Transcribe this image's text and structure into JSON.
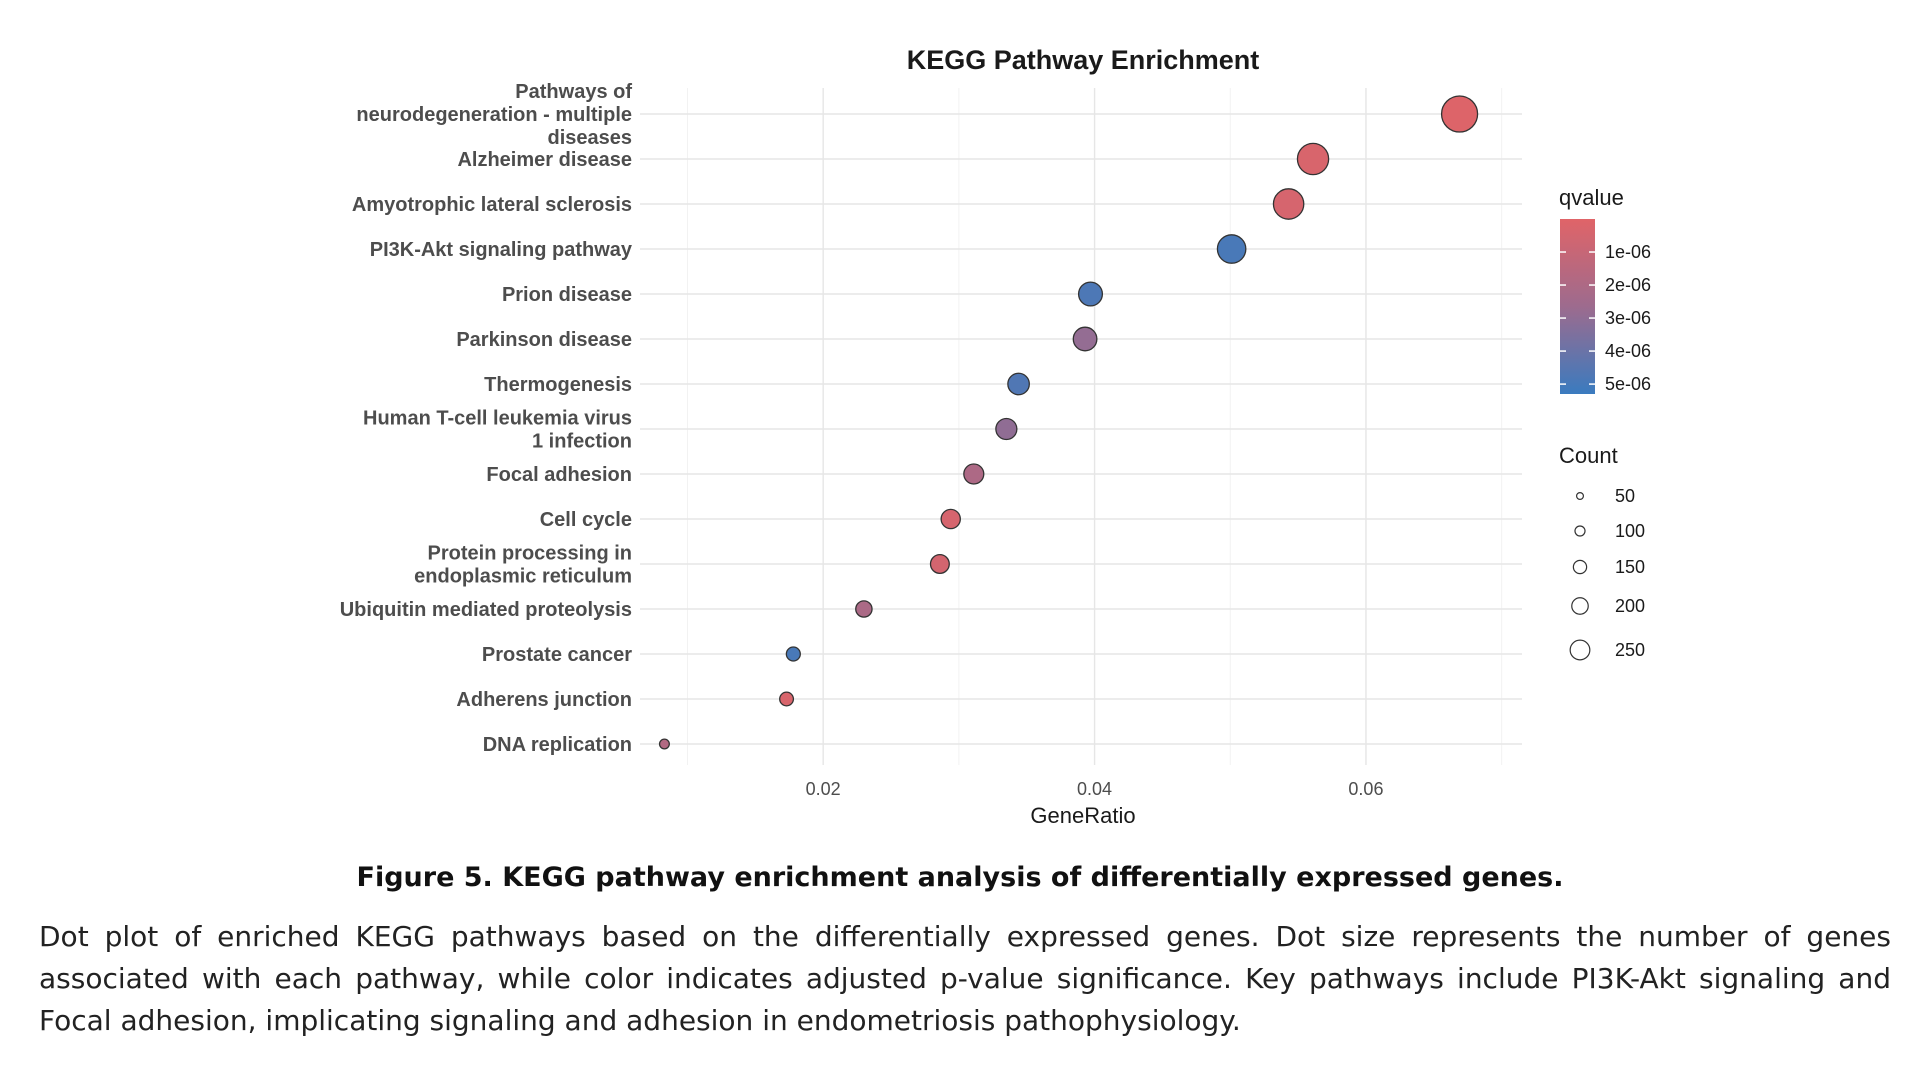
{
  "chart_data": {
    "type": "scatter",
    "title": "KEGG Pathway Enrichment",
    "xlabel": "GeneRatio",
    "xlim": [
      0.0065,
      0.0715
    ],
    "xticks": [
      0.02,
      0.04,
      0.06
    ],
    "xtick_labels": [
      "0.02",
      "0.04",
      "0.06"
    ],
    "grid": true,
    "legend_placement": "right",
    "categories": [
      "Pathways of neurodegeneration - multiple diseases",
      "Alzheimer disease",
      "Amyotrophic lateral sclerosis",
      "PI3K-Akt signaling pathway",
      "Prion disease",
      "Parkinson disease",
      "Thermogenesis",
      "Human T-cell leukemia virus 1 infection",
      "Focal adhesion",
      "Cell cycle",
      "Protein processing in endoplasmic reticulum",
      "Ubiquitin mediated proteolysis",
      "Prostate cancer",
      "Adherens junction",
      "DNA replication"
    ],
    "category_lines": [
      [
        "Pathways of",
        "neurodegeneration - multiple",
        "diseases"
      ],
      [
        "Alzheimer disease"
      ],
      [
        "Amyotrophic lateral sclerosis"
      ],
      [
        "PI3K-Akt signaling pathway"
      ],
      [
        "Prion disease"
      ],
      [
        "Parkinson disease"
      ],
      [
        "Thermogenesis"
      ],
      [
        "Human T-cell leukemia virus",
        "1 infection"
      ],
      [
        "Focal adhesion"
      ],
      [
        "Cell cycle"
      ],
      [
        "Protein processing in",
        "endoplasmic reticulum"
      ],
      [
        "Ubiquitin mediated proteolysis"
      ],
      [
        "Prostate cancer"
      ],
      [
        "Adherens junction"
      ],
      [
        "DNA replication"
      ]
    ],
    "gene_ratio": [
      0.0669,
      0.0561,
      0.0543,
      0.0501,
      0.0397,
      0.0393,
      0.0344,
      0.0335,
      0.0311,
      0.0294,
      0.0286,
      0.023,
      0.0178,
      0.0173,
      0.0083
    ],
    "count": [
      280,
      235,
      227,
      209,
      166,
      164,
      144,
      140,
      130,
      123,
      119,
      96,
      74,
      72,
      35
    ],
    "qvalue": [
      1e-07,
      3e-07,
      4e-07,
      4.9e-06,
      4.8e-06,
      2.9e-06,
      4.7e-06,
      3e-06,
      2e-06,
      4e-07,
      5e-07,
      2.1e-06,
      4.9e-06,
      3e-07,
      1.8e-06
    ],
    "legend_color": {
      "title": "qvalue",
      "min": 0,
      "max": 5.3e-06,
      "ticks": [
        1e-06,
        2e-06,
        3e-06,
        4e-06,
        5e-06
      ],
      "tick_labels": [
        "1e-06",
        "2e-06",
        "3e-06",
        "4e-06",
        "5e-06"
      ],
      "low_color": "#e06468",
      "mid_color": "#9d6b8e",
      "high_color": "#3a7bbf"
    },
    "legend_size": {
      "title": "Count",
      "values": [
        50,
        100,
        150,
        200,
        250
      ],
      "labels": [
        "50",
        "100",
        "150",
        "200",
        "250"
      ]
    }
  },
  "figure_caption": "Figure 5. KEGG pathway enrichment analysis of differentially expressed genes.",
  "figure_description": "Dot plot of enriched KEGG pathways based on the differentially expressed genes. Dot size represents the number of genes associated with each pathway, while color indicates adjusted p-value significance. Key pathways include PI3K-Akt signaling and Focal adhesion, implicating signaling and adhesion in endometriosis pathophysiology."
}
